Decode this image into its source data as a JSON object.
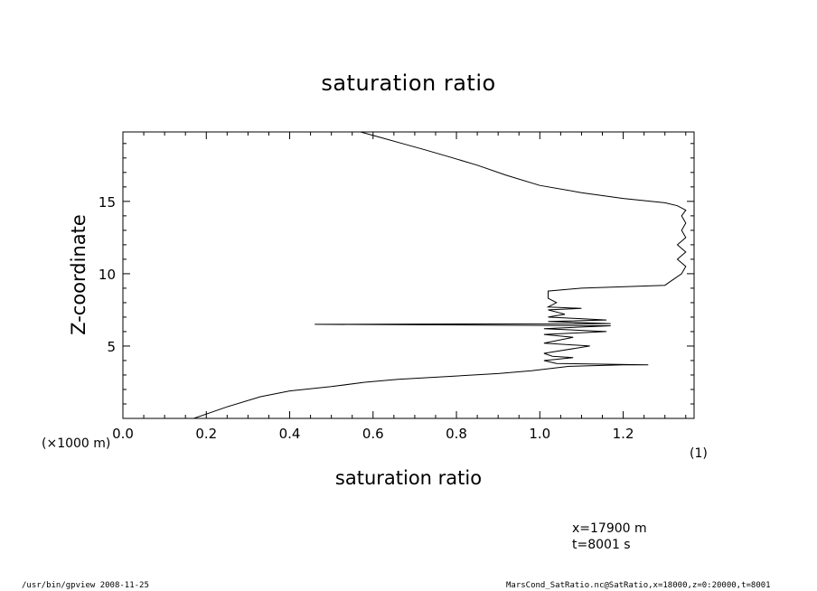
{
  "page": {
    "x_unit_left": "(×1000 m)",
    "x_unit_right": "(1)",
    "info_x": "x=17900  m",
    "info_t": "t=8001  s",
    "footer_left": "/usr/bin/gpview   2008-11-25",
    "footer_right": "MarsCond_SatRatio.nc@SatRatio,x=18000,z=0:20000,t=8001"
  },
  "chart_data": {
    "type": "line",
    "title": "saturation ratio",
    "xlabel": "saturation ratio",
    "ylabel": "Z-coordinate",
    "xlim": [
      0.0,
      1.37
    ],
    "ylim": [
      0,
      19.8
    ],
    "xticks": [
      0.0,
      0.2,
      0.4,
      0.6,
      0.8,
      1.0,
      1.2
    ],
    "xtick_labels": [
      "0.0",
      "0.2",
      "0.4",
      "0.6",
      "0.8",
      "1.0",
      "1.2"
    ],
    "yticks": [
      5,
      10,
      15
    ],
    "ytick_labels": [
      "5",
      "10",
      "15"
    ],
    "grid": false,
    "series": [
      {
        "color": "#000000",
        "x": [
          0.17,
          0.2,
          0.25,
          0.33,
          0.4,
          0.5,
          0.58,
          0.66,
          0.78,
          0.9,
          0.98,
          1.04,
          1.07,
          1.13,
          1.2,
          1.26,
          1.04,
          1.01,
          1.08,
          1.03,
          1.01,
          1.12,
          1.01,
          1.08,
          1.01,
          1.16,
          1.01,
          1.17,
          0.46,
          1.17,
          1.02,
          1.16,
          1.02,
          1.06,
          1.02,
          1.1,
          1.02,
          1.04,
          1.02,
          1.02,
          1.1,
          1.3,
          1.32,
          1.34,
          1.35,
          1.33,
          1.35,
          1.33,
          1.35,
          1.34,
          1.35,
          1.34,
          1.35,
          1.33,
          1.3,
          1.2,
          1.1,
          1.0,
          0.92,
          0.85,
          0.78,
          0.72,
          0.67,
          0.62,
          0.57
        ],
        "y": [
          0.0,
          0.3,
          0.8,
          1.5,
          1.9,
          2.2,
          2.5,
          2.7,
          2.9,
          3.1,
          3.3,
          3.5,
          3.6,
          3.65,
          3.7,
          3.7,
          3.8,
          4.0,
          4.2,
          4.3,
          4.5,
          5.0,
          5.2,
          5.6,
          5.8,
          6.0,
          6.2,
          6.4,
          6.5,
          6.55,
          6.7,
          6.8,
          7.0,
          7.2,
          7.5,
          7.6,
          7.7,
          8.0,
          8.3,
          8.8,
          9.0,
          9.2,
          9.6,
          10.0,
          10.5,
          11.0,
          11.5,
          12.0,
          12.5,
          13.0,
          13.5,
          14.0,
          14.4,
          14.7,
          14.9,
          15.2,
          15.6,
          16.1,
          16.8,
          17.5,
          18.1,
          18.6,
          19.0,
          19.4,
          19.8
        ]
      }
    ]
  }
}
